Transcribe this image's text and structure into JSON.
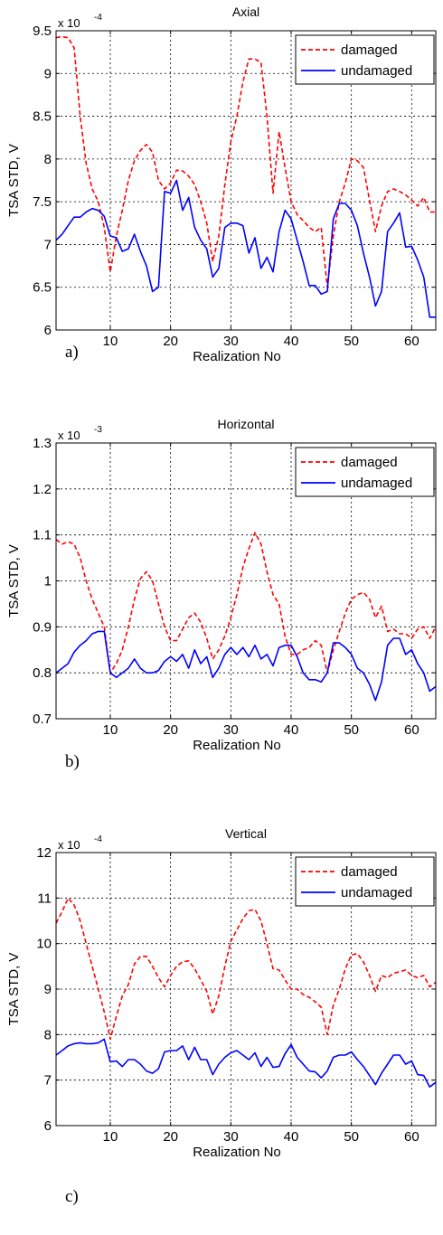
{
  "chart_data": [
    {
      "type": "line",
      "title": "Axial",
      "xlabel": "Realization No",
      "ylabel": "TSA STD, V",
      "multiplier": "x 10",
      "exponent": "-4",
      "panel_label": "a)",
      "xlim": [
        1,
        64
      ],
      "ylim": [
        6,
        9.5
      ],
      "xticks": [
        10,
        20,
        30,
        40,
        50,
        60
      ],
      "yticks": [
        6,
        6.5,
        7,
        7.5,
        8,
        8.5,
        9,
        9.5
      ],
      "grid": true,
      "legend_position": "top-right",
      "x": [
        1,
        2,
        3,
        4,
        5,
        6,
        7,
        8,
        9,
        10,
        11,
        12,
        13,
        14,
        15,
        16,
        17,
        18,
        19,
        20,
        21,
        22,
        23,
        24,
        25,
        26,
        27,
        28,
        29,
        30,
        31,
        32,
        33,
        34,
        35,
        36,
        37,
        38,
        39,
        40,
        41,
        42,
        43,
        44,
        45,
        46,
        47,
        48,
        49,
        50,
        51,
        52,
        53,
        54,
        55,
        56,
        57,
        58,
        59,
        60,
        61,
        62,
        63,
        64
      ],
      "series": [
        {
          "name": "damaged",
          "color": "#ff0000",
          "dash": true,
          "values": [
            9.42,
            9.43,
            9.42,
            9.3,
            8.5,
            7.95,
            7.65,
            7.5,
            7.2,
            6.68,
            7.1,
            7.4,
            7.75,
            7.98,
            8.1,
            8.17,
            8.08,
            7.75,
            7.65,
            7.72,
            7.87,
            7.86,
            7.8,
            7.7,
            7.5,
            7.25,
            6.8,
            7.1,
            7.7,
            8.2,
            8.5,
            8.9,
            9.17,
            9.17,
            9.13,
            8.5,
            7.6,
            8.32,
            7.9,
            7.5,
            7.35,
            7.28,
            7.2,
            7.15,
            7.2,
            6.5,
            7.1,
            7.5,
            7.72,
            8.0,
            7.98,
            7.9,
            7.52,
            7.15,
            7.45,
            7.62,
            7.65,
            7.62,
            7.58,
            7.52,
            7.45,
            7.55,
            7.38,
            7.38
          ]
        },
        {
          "name": "undamaged",
          "color": "#0000ff",
          "dash": false,
          "values": [
            7.05,
            7.12,
            7.22,
            7.32,
            7.32,
            7.38,
            7.42,
            7.4,
            7.33,
            7.1,
            7.08,
            6.92,
            6.95,
            7.12,
            6.92,
            6.75,
            6.45,
            6.5,
            7.62,
            7.6,
            7.75,
            7.4,
            7.55,
            7.2,
            7.05,
            6.95,
            6.62,
            6.72,
            7.2,
            7.25,
            7.25,
            7.22,
            6.9,
            7.08,
            6.72,
            6.85,
            6.68,
            7.15,
            7.4,
            7.3,
            7.05,
            6.8,
            6.52,
            6.52,
            6.42,
            6.45,
            7.3,
            7.48,
            7.48,
            7.4,
            7.22,
            6.9,
            6.62,
            6.28,
            6.45,
            7.15,
            7.25,
            7.37,
            6.97,
            6.98,
            6.82,
            6.62,
            6.15,
            6.15
          ]
        }
      ]
    },
    {
      "type": "line",
      "title": "Horizontal",
      "xlabel": "Realization No",
      "ylabel": "TSA STD, V",
      "multiplier": "x 10",
      "exponent": "-3",
      "panel_label": "b)",
      "xlim": [
        1,
        64
      ],
      "ylim": [
        0.7,
        1.3
      ],
      "xticks": [
        10,
        20,
        30,
        40,
        50,
        60
      ],
      "yticks": [
        0.7,
        0.8,
        0.9,
        1,
        1.1,
        1.2,
        1.3
      ],
      "ytick_labels": [
        "0.7",
        "0.8",
        "0.9",
        "1",
        "1.1",
        "1.2",
        "1.3"
      ],
      "grid": true,
      "legend_position": "top-right",
      "x": [
        1,
        2,
        3,
        4,
        5,
        6,
        7,
        8,
        9,
        10,
        11,
        12,
        13,
        14,
        15,
        16,
        17,
        18,
        19,
        20,
        21,
        22,
        23,
        24,
        25,
        26,
        27,
        28,
        29,
        30,
        31,
        32,
        33,
        34,
        35,
        36,
        37,
        38,
        39,
        40,
        41,
        42,
        43,
        44,
        45,
        46,
        47,
        48,
        49,
        50,
        51,
        52,
        53,
        54,
        55,
        56,
        57,
        58,
        59,
        60,
        61,
        62,
        63,
        64
      ],
      "series": [
        {
          "name": "damaged",
          "color": "#ff0000",
          "dash": true,
          "values": [
            1.09,
            1.08,
            1.085,
            1.08,
            1.05,
            1.0,
            0.96,
            0.93,
            0.9,
            0.8,
            0.82,
            0.85,
            0.9,
            0.96,
            1.005,
            1.02,
            1.0,
            0.95,
            0.9,
            0.87,
            0.87,
            0.895,
            0.92,
            0.93,
            0.91,
            0.875,
            0.83,
            0.85,
            0.88,
            0.92,
            0.97,
            1.03,
            1.07,
            1.105,
            1.08,
            1.02,
            0.97,
            0.95,
            0.88,
            0.84,
            0.84,
            0.85,
            0.855,
            0.87,
            0.86,
            0.8,
            0.85,
            0.89,
            0.93,
            0.96,
            0.97,
            0.975,
            0.96,
            0.92,
            0.945,
            0.89,
            0.895,
            0.885,
            0.885,
            0.875,
            0.895,
            0.9,
            0.875,
            0.9
          ]
        },
        {
          "name": "undamaged",
          "color": "#0000ff",
          "dash": false,
          "values": [
            0.8,
            0.81,
            0.82,
            0.845,
            0.86,
            0.87,
            0.885,
            0.89,
            0.89,
            0.8,
            0.79,
            0.8,
            0.81,
            0.83,
            0.81,
            0.8,
            0.8,
            0.805,
            0.825,
            0.835,
            0.825,
            0.84,
            0.81,
            0.85,
            0.82,
            0.835,
            0.79,
            0.81,
            0.84,
            0.855,
            0.84,
            0.855,
            0.835,
            0.86,
            0.83,
            0.84,
            0.815,
            0.855,
            0.86,
            0.86,
            0.835,
            0.8,
            0.785,
            0.785,
            0.78,
            0.8,
            0.865,
            0.865,
            0.855,
            0.84,
            0.81,
            0.8,
            0.775,
            0.74,
            0.78,
            0.86,
            0.875,
            0.875,
            0.84,
            0.85,
            0.82,
            0.8,
            0.76,
            0.77
          ]
        }
      ]
    },
    {
      "type": "line",
      "title": "Vertical",
      "xlabel": "Realization No",
      "ylabel": "TSA STD, V",
      "multiplier": "x 10",
      "exponent": "-4",
      "panel_label": "c)",
      "xlim": [
        1,
        64
      ],
      "ylim": [
        6,
        12
      ],
      "xticks": [
        10,
        20,
        30,
        40,
        50,
        60
      ],
      "yticks": [
        6,
        7,
        8,
        9,
        10,
        11,
        12
      ],
      "grid": true,
      "legend_position": "top-right",
      "x": [
        1,
        2,
        3,
        4,
        5,
        6,
        7,
        8,
        9,
        10,
        11,
        12,
        13,
        14,
        15,
        16,
        17,
        18,
        19,
        20,
        21,
        22,
        23,
        24,
        25,
        26,
        27,
        28,
        29,
        30,
        31,
        32,
        33,
        34,
        35,
        36,
        37,
        38,
        39,
        40,
        41,
        42,
        43,
        44,
        45,
        46,
        47,
        48,
        49,
        50,
        51,
        52,
        53,
        54,
        55,
        56,
        57,
        58,
        59,
        60,
        61,
        62,
        63,
        64
      ],
      "series": [
        {
          "name": "damaged",
          "color": "#ff0000",
          "dash": true,
          "values": [
            10.45,
            10.7,
            11.0,
            10.85,
            10.5,
            10.0,
            9.5,
            9.0,
            8.5,
            7.9,
            8.4,
            8.85,
            9.1,
            9.55,
            9.72,
            9.72,
            9.5,
            9.25,
            9.05,
            9.3,
            9.5,
            9.6,
            9.62,
            9.45,
            9.2,
            8.95,
            8.45,
            8.85,
            9.5,
            10.05,
            10.3,
            10.55,
            10.72,
            10.75,
            10.5,
            10.0,
            9.45,
            9.42,
            9.2,
            9.0,
            9.0,
            8.88,
            8.82,
            8.72,
            8.6,
            8.0,
            8.65,
            9.0,
            9.45,
            9.75,
            9.78,
            9.6,
            9.3,
            8.95,
            9.3,
            9.25,
            9.35,
            9.38,
            9.42,
            9.3,
            9.25,
            9.3,
            9.05,
            9.15
          ]
        },
        {
          "name": "undamaged",
          "color": "#0000ff",
          "dash": false,
          "values": [
            7.55,
            7.65,
            7.75,
            7.8,
            7.82,
            7.8,
            7.8,
            7.82,
            7.9,
            7.4,
            7.42,
            7.3,
            7.45,
            7.45,
            7.35,
            7.2,
            7.15,
            7.25,
            7.62,
            7.65,
            7.65,
            7.75,
            7.45,
            7.72,
            7.45,
            7.45,
            7.12,
            7.35,
            7.5,
            7.6,
            7.65,
            7.55,
            7.45,
            7.6,
            7.3,
            7.5,
            7.28,
            7.3,
            7.58,
            7.78,
            7.5,
            7.35,
            7.2,
            7.18,
            7.05,
            7.2,
            7.5,
            7.55,
            7.55,
            7.62,
            7.45,
            7.3,
            7.1,
            6.9,
            7.15,
            7.35,
            7.55,
            7.55,
            7.35,
            7.42,
            7.12,
            7.1,
            6.85,
            6.95
          ]
        }
      ]
    }
  ]
}
